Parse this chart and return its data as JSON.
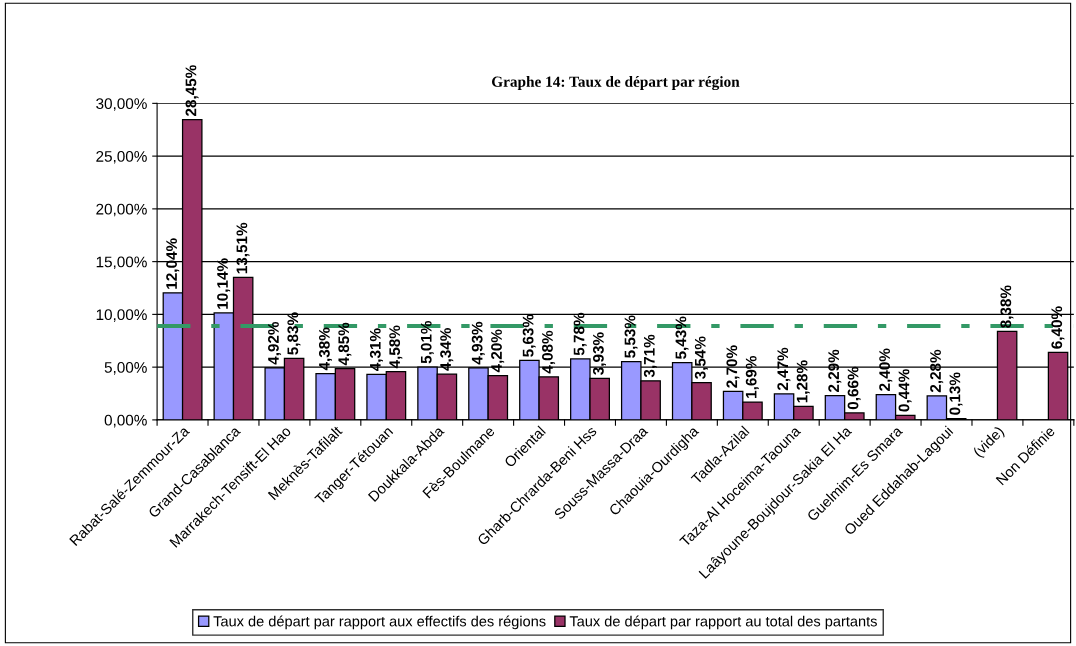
{
  "chart_data": {
    "type": "bar",
    "title": "Graphe 14: Taux de départ par région",
    "categories": [
      "Rabat-Salé-Zemmour-Za",
      "Grand-Casablanca",
      "Marrakech-Tensift-El Hao",
      "Meknès-Tafilalt",
      "Tanger-Tétouan",
      "Doukkala-Abda",
      "Fès-Boulmane",
      "Oriental",
      "Gharb-Chrarda-Beni Hss",
      "Souss-Massa-Draa",
      "Chaouia-Ourdigha",
      "Tadla-Azilal",
      "Taza-Al Hoceima-Taouna",
      "Laâyoune-Boujdour-Sakia El Ha",
      "Guelmim-Es Smara",
      "Oued Eddahab-Lagoui",
      "(vide)",
      "Non Définie"
    ],
    "series": [
      {
        "name": "Taux de départ par rapport aux effectifs des régions",
        "color": "#9999ff",
        "values": [
          12.04,
          10.14,
          4.92,
          4.38,
          4.31,
          5.01,
          4.93,
          5.63,
          5.78,
          5.53,
          5.43,
          2.7,
          2.47,
          2.29,
          2.4,
          2.28,
          null,
          null
        ],
        "value_labels": [
          "12,04%",
          "10,14%",
          "4,92%",
          "4,38%",
          "4,31%",
          "5,01%",
          "4,93%",
          "5,63%",
          "5,78%",
          "5,53%",
          "5,43%",
          "2,70%",
          "2,47%",
          "2,29%",
          "2,40%",
          "2,28%",
          null,
          null
        ]
      },
      {
        "name": "Taux de départ par rapport au total des partants",
        "color": "#993366",
        "values": [
          28.45,
          13.51,
          5.83,
          4.85,
          4.58,
          4.34,
          4.2,
          4.08,
          3.93,
          3.71,
          3.54,
          1.69,
          1.28,
          0.66,
          0.44,
          0.13,
          8.38,
          6.4
        ],
        "value_labels": [
          "28,45%",
          "13,51%",
          "5,83%",
          "4,85%",
          "4,58%",
          "4,34%",
          "4,20%",
          "4,08%",
          "3,93%",
          "3,71%",
          "3,54%",
          "1,69%",
          "1,28%",
          "0,66%",
          "0,44%",
          "0,13%",
          "8,38%",
          "6,40%"
        ]
      }
    ],
    "ylim": [
      0,
      30
    ],
    "yticks": [
      {
        "value": 0,
        "label": "0,00%"
      },
      {
        "value": 5,
        "label": "5,00%"
      },
      {
        "value": 10,
        "label": "10,00%"
      },
      {
        "value": 15,
        "label": "15,00%"
      },
      {
        "value": 20,
        "label": "20,00%"
      },
      {
        "value": 25,
        "label": "25,00%"
      },
      {
        "value": 30,
        "label": "30,00%"
      }
    ],
    "grid": "y",
    "legend": "bottom",
    "ref_lines": [
      {
        "axis": "y",
        "value": 8.9,
        "color": "#339966",
        "line_style": "dashdot"
      }
    ]
  }
}
